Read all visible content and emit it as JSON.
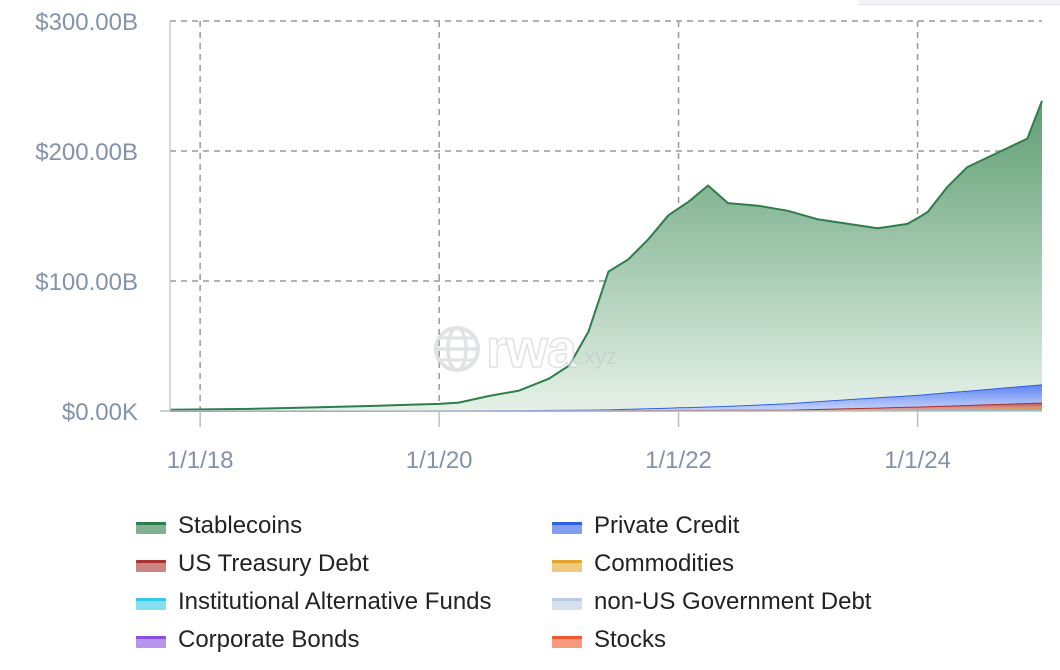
{
  "chart_data": {
    "type": "area",
    "stacked": true,
    "title": "",
    "xlabel": "",
    "ylabel": "",
    "xlim": [
      "2017-10-01",
      "2025-01-15"
    ],
    "ylim": [
      0,
      300
    ],
    "y_unit": "billions USD",
    "y_ticks": [
      "$0.00K",
      "$100.00B",
      "$200.00B",
      "$300.00B"
    ],
    "x_ticks": [
      {
        "date": "2018-01-01",
        "label": "1/1/18"
      },
      {
        "date": "2020-01-01",
        "label": "1/1/20"
      },
      {
        "date": "2022-01-01",
        "label": "1/1/22"
      },
      {
        "date": "2024-01-01",
        "label": "1/1/24"
      }
    ],
    "grid": true,
    "legend_position": "bottom",
    "series": [
      {
        "name": "Stablecoins",
        "color": "#2e7d4a",
        "points": [
          [
            "2017-10-01",
            1
          ],
          [
            "2018-06-01",
            1.5
          ],
          [
            "2018-12-01",
            2.5
          ],
          [
            "2019-06-01",
            3.5
          ],
          [
            "2019-10-01",
            4.5
          ],
          [
            "2020-01-01",
            5
          ],
          [
            "2020-03-01",
            6
          ],
          [
            "2020-06-01",
            11
          ],
          [
            "2020-09-01",
            15
          ],
          [
            "2020-12-01",
            24
          ],
          [
            "2021-02-01",
            34
          ],
          [
            "2021-04-01",
            60
          ],
          [
            "2021-06-01",
            106
          ],
          [
            "2021-08-01",
            115
          ],
          [
            "2021-10-01",
            130
          ],
          [
            "2021-12-01",
            148
          ],
          [
            "2022-02-01",
            158
          ],
          [
            "2022-04-01",
            170
          ],
          [
            "2022-06-01",
            156
          ],
          [
            "2022-09-01",
            153
          ],
          [
            "2022-12-01",
            148
          ],
          [
            "2023-03-01",
            140
          ],
          [
            "2023-06-01",
            135
          ],
          [
            "2023-09-01",
            130
          ],
          [
            "2023-12-01",
            132
          ],
          [
            "2024-02-01",
            140
          ],
          [
            "2024-04-01",
            158
          ],
          [
            "2024-06-01",
            172
          ],
          [
            "2024-08-01",
            178
          ],
          [
            "2024-10-01",
            184
          ],
          [
            "2024-12-01",
            190
          ],
          [
            "2025-01-15",
            218
          ]
        ]
      },
      {
        "name": "Private Credit",
        "color": "#2f5ee8",
        "points": [
          [
            "2017-10-01",
            0
          ],
          [
            "2020-06-01",
            0
          ],
          [
            "2021-06-01",
            0.5
          ],
          [
            "2022-01-01",
            2
          ],
          [
            "2022-06-01",
            3
          ],
          [
            "2022-12-01",
            5
          ],
          [
            "2023-06-01",
            7
          ],
          [
            "2024-01-01",
            9
          ],
          [
            "2024-06-01",
            11
          ],
          [
            "2025-01-15",
            14
          ]
        ]
      },
      {
        "name": "US Treasury Debt",
        "color": "#a8332f",
        "points": [
          [
            "2017-10-01",
            0
          ],
          [
            "2022-12-01",
            0
          ],
          [
            "2023-06-01",
            1
          ],
          [
            "2024-01-01",
            2
          ],
          [
            "2024-06-01",
            3
          ],
          [
            "2025-01-15",
            4.5
          ]
        ]
      },
      {
        "name": "Commodities",
        "color": "#e2a52a",
        "points": [
          [
            "2017-10-01",
            0
          ],
          [
            "2023-06-01",
            0.3
          ],
          [
            "2025-01-15",
            1
          ]
        ]
      },
      {
        "name": "Institutional Alternative Funds",
        "color": "#35c9e8",
        "points": [
          [
            "2017-10-01",
            0
          ],
          [
            "2025-01-15",
            0.2
          ]
        ]
      },
      {
        "name": "non-US Government Debt",
        "color": "#b9cbe0",
        "points": [
          [
            "2017-10-01",
            0
          ],
          [
            "2025-01-15",
            0.2
          ]
        ]
      },
      {
        "name": "Corporate Bonds",
        "color": "#8a4ee3",
        "points": [
          [
            "2017-10-01",
            0
          ],
          [
            "2025-01-15",
            0.1
          ]
        ]
      },
      {
        "name": "Stocks",
        "color": "#f0572a",
        "points": [
          [
            "2017-10-01",
            0
          ],
          [
            "2025-01-15",
            0.5
          ]
        ]
      }
    ]
  },
  "watermark": {
    "brand": "rwa",
    "suffix": ".xyz",
    "icon": "globe-icon"
  },
  "legend": [
    {
      "label": "Stablecoins",
      "color": "#2e7d4a"
    },
    {
      "label": "Private Credit",
      "color": "#2f5ee8"
    },
    {
      "label": "US Treasury Debt",
      "color": "#a8332f"
    },
    {
      "label": "Commodities",
      "color": "#e2a52a"
    },
    {
      "label": "Institutional Alternative Funds",
      "color": "#35c9e8"
    },
    {
      "label": "non-US Government Debt",
      "color": "#b9cbe0"
    },
    {
      "label": "Corporate Bonds",
      "color": "#8a4ee3"
    },
    {
      "label": "Stocks",
      "color": "#f0572a"
    }
  ]
}
